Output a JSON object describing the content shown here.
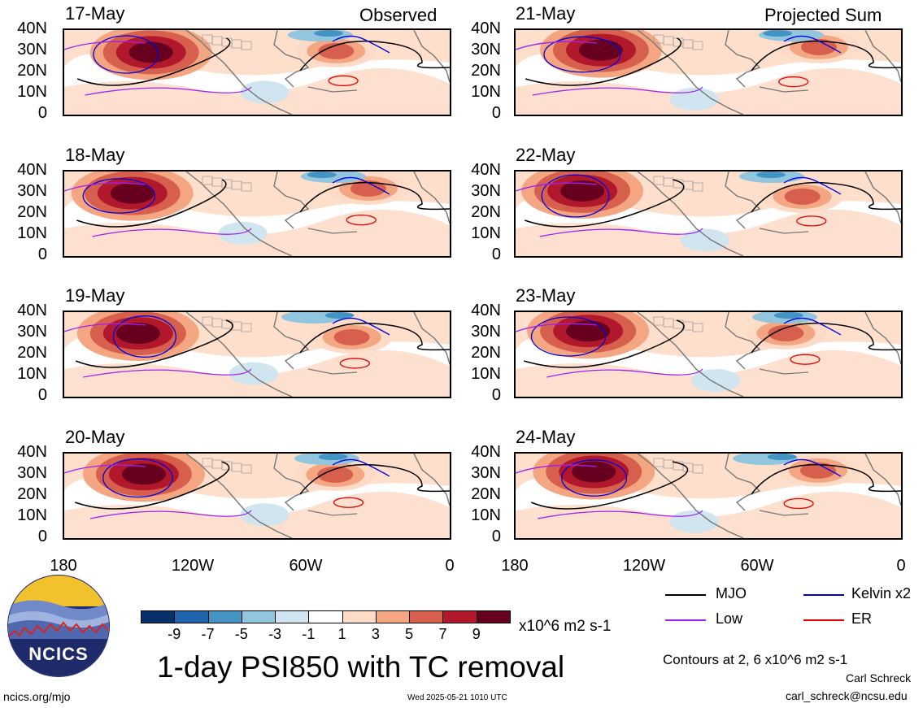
{
  "panels": [
    {
      "date": "17-May",
      "tag": "Observed",
      "col": 0,
      "row": 0
    },
    {
      "date": "18-May",
      "tag": "",
      "col": 0,
      "row": 1
    },
    {
      "date": "19-May",
      "tag": "",
      "col": 0,
      "row": 2
    },
    {
      "date": "20-May",
      "tag": "",
      "col": 0,
      "row": 3
    },
    {
      "date": "21-May",
      "tag": "Projected Sum",
      "col": 1,
      "row": 0
    },
    {
      "date": "22-May",
      "tag": "",
      "col": 1,
      "row": 1
    },
    {
      "date": "23-May",
      "tag": "",
      "col": 1,
      "row": 2
    },
    {
      "date": "24-May",
      "tag": "",
      "col": 1,
      "row": 3
    }
  ],
  "lat_labels": [
    "40N",
    "30N",
    "20N",
    "10N",
    "0"
  ],
  "lon_labels": [
    "180",
    "120W",
    "60W",
    "0"
  ],
  "colorbar": {
    "labels": [
      "-9",
      "-7",
      "-5",
      "-3",
      "-1",
      "1",
      "3",
      "5",
      "7",
      "9"
    ],
    "colors": [
      "#08306b",
      "#2166ac",
      "#4393c3",
      "#92c5de",
      "#d1e5f0",
      "#ffffff",
      "#fddbc7",
      "#f4a582",
      "#d6604d",
      "#b2182b",
      "#67001f"
    ],
    "units": "x10^6 m2 s-1"
  },
  "title": "1-day PSI850 with TC removal",
  "legend": {
    "mjo": {
      "label": "MJO",
      "color": "#000000"
    },
    "kelvin": {
      "label": "Kelvin x2",
      "color": "#0000dd"
    },
    "low": {
      "label": "Low",
      "color": "#a020f0"
    },
    "er": {
      "label": "ER",
      "color": "#e00000"
    }
  },
  "contours_note": "Contours at 2, 6 x10^6 m2 s-1",
  "author": "Carl Schreck",
  "email": "carl_schreck@ncsu.edu",
  "site": "ncics.org/mjo",
  "timestamp": "Wed 2025-05-21 1010 UTC",
  "logo_text": "NCICS"
}
